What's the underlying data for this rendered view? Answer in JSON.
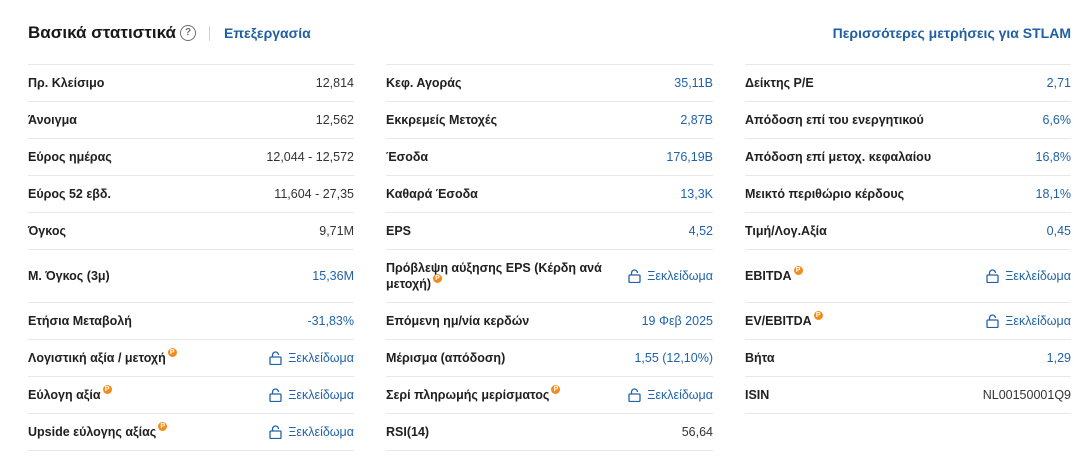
{
  "header": {
    "title": "Βασικά στατιστικά",
    "help": "?",
    "edit": "Επεξεργασία",
    "more": "Περισσότερες μετρήσεις για STLAM"
  },
  "unlock_label": "Ξεκλείδωμα",
  "pro_badge": "P",
  "colors": {
    "link": "#1f5fa3",
    "value_blue": "#2163a8",
    "pro_badge": "#f38b1c",
    "divider": "#e8e8e8"
  },
  "columns": [
    {
      "rows": [
        {
          "label": "Πρ. Κλείσιμο",
          "value": "12,814"
        },
        {
          "label": "Άνοιγμα",
          "value": "12,562"
        },
        {
          "label": "Εύρος ημέρας",
          "value": "12,044 - 12,572"
        },
        {
          "label": "Εύρος 52 εβδ.",
          "value": "11,604 - 27,35"
        },
        {
          "label": "Όγκος",
          "value": "9,71M"
        },
        {
          "label": "Μ. Όγκος (3μ)",
          "value": "15,36M"
        },
        {
          "label": "Ετήσια Μεταβολή",
          "value": "-31,83%"
        },
        {
          "label": "Λογιστική αξία / μετοχή"
        },
        {
          "label": "Εύλογη αξία"
        },
        {
          "label": "Upside εύλογης αξίας"
        }
      ]
    },
    {
      "rows": [
        {
          "label": "Κεφ. Αγοράς",
          "value": "35,11B"
        },
        {
          "label": "Εκκρεμείς Μετοχές",
          "value": "2,87B"
        },
        {
          "label": "Έσοδα",
          "value": "176,19B"
        },
        {
          "label": "Καθαρά Έσοδα",
          "value": "13,3K"
        },
        {
          "label": "EPS",
          "value": "4,52"
        },
        {
          "label": "Πρόβλεψη αύξησης EPS (Κέρδη ανά μετοχή)"
        },
        {
          "label": "Επόμενη ημ/νία κερδών",
          "value": "19 Φεβ 2025"
        },
        {
          "label": "Μέρισμα (απόδοση)",
          "value": "1,55 (12,10%)"
        },
        {
          "label": "Σερί πληρωμής μερίσματος"
        },
        {
          "label": "RSI(14)",
          "value": "56,64"
        }
      ]
    },
    {
      "rows": [
        {
          "label": "Δείκτης P/E",
          "value": "2,71"
        },
        {
          "label": "Απόδοση επί του ενεργητικού",
          "value": "6,6%"
        },
        {
          "label": "Απόδοση επί μετοχ. κεφαλαίου",
          "value": "16,8%"
        },
        {
          "label": "Μεικτό περιθώριο κέρδους",
          "value": "18,1%"
        },
        {
          "label": "Τιμή/Λογ.Αξία",
          "value": "0,45"
        },
        {
          "label": "EBITDA"
        },
        {
          "label": "EV/EBITDA"
        },
        {
          "label": "Βήτα",
          "value": "1,29"
        },
        {
          "label": "ISIN",
          "value": "NL00150001Q9"
        }
      ]
    }
  ]
}
